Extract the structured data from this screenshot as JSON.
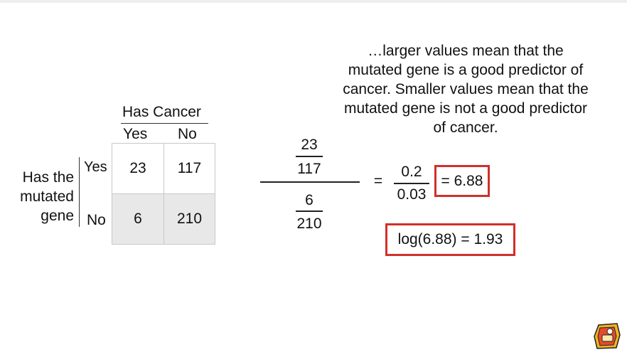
{
  "caption": {
    "line1": "…larger values mean that the",
    "line2": "mutated gene is a good predictor of",
    "line3": "cancer. Smaller values mean that the",
    "line4": "mutated gene is not a good predictor",
    "line5": "of cancer."
  },
  "table": {
    "column_header": "Has Cancer",
    "col_yes": "Yes",
    "col_no": "No",
    "row_header_line1": "Has the",
    "row_header_line2": "mutated",
    "row_header_line3": "gene",
    "row_yes": "Yes",
    "row_no": "No",
    "cells": {
      "yes_yes": "23",
      "yes_no": "117",
      "no_yes": "6",
      "no_no": "210"
    }
  },
  "formula": {
    "top_num": "23",
    "top_den": "117",
    "bottom_num": "6",
    "bottom_den": "210",
    "equals": "=",
    "ratio_num": "0.2",
    "ratio_den": "0.03",
    "result": "= 6.88",
    "log_result": "log(6.88) = 1.93"
  },
  "colors": {
    "highlight_box": "#d0302a",
    "shaded_row": "#e8e8e8"
  },
  "logo": {
    "icon": "statquest-logo-icon"
  }
}
